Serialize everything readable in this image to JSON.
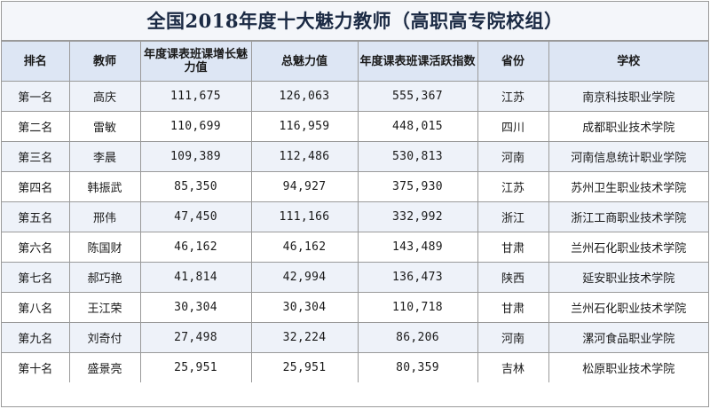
{
  "title": "全国2018年度十大魅力教师（高职高专院校组）",
  "headers": {
    "rank": "排名",
    "teacher": "教师",
    "growth": "年度课表班课增长魅力值",
    "total": "总魅力值",
    "activity": "年度课表班课活跃指数",
    "province": "省份",
    "school": "学校"
  },
  "rows": [
    {
      "rank": "第一名",
      "teacher": "高庆",
      "growth": "111,675",
      "total": "126,063",
      "activity": "555,367",
      "province": "江苏",
      "school": "南京科技职业学院"
    },
    {
      "rank": "第二名",
      "teacher": "雷敏",
      "growth": "110,699",
      "total": "116,959",
      "activity": "448,015",
      "province": "四川",
      "school": "成都职业技术学院"
    },
    {
      "rank": "第三名",
      "teacher": "李晨",
      "growth": "109,389",
      "total": "112,486",
      "activity": "530,813",
      "province": "河南",
      "school": "河南信息统计职业学院"
    },
    {
      "rank": "第四名",
      "teacher": "韩振武",
      "growth": "85,350",
      "total": "94,927",
      "activity": "375,930",
      "province": "江苏",
      "school": "苏州卫生职业技术学院"
    },
    {
      "rank": "第五名",
      "teacher": "邢伟",
      "growth": "47,450",
      "total": "111,166",
      "activity": "332,992",
      "province": "浙江",
      "school": "浙江工商职业技术学院"
    },
    {
      "rank": "第六名",
      "teacher": "陈国财",
      "growth": "46,162",
      "total": "46,162",
      "activity": "143,489",
      "province": "甘肃",
      "school": "兰州石化职业技术学院"
    },
    {
      "rank": "第七名",
      "teacher": "郝巧艳",
      "growth": "41,814",
      "total": "42,994",
      "activity": "136,473",
      "province": "陕西",
      "school": "延安职业技术学院"
    },
    {
      "rank": "第八名",
      "teacher": "王江荣",
      "growth": "30,304",
      "total": "30,304",
      "activity": "110,718",
      "province": "甘肃",
      "school": "兰州石化职业技术学院"
    },
    {
      "rank": "第九名",
      "teacher": "刘奇付",
      "growth": "27,498",
      "total": "32,224",
      "activity": "86,206",
      "province": "河南",
      "school": "漯河食品职业学院"
    },
    {
      "rank": "第十名",
      "teacher": "盛景亮",
      "growth": "25,951",
      "total": "25,951",
      "activity": "80,359",
      "province": "吉林",
      "school": "松原职业技术学院"
    }
  ]
}
